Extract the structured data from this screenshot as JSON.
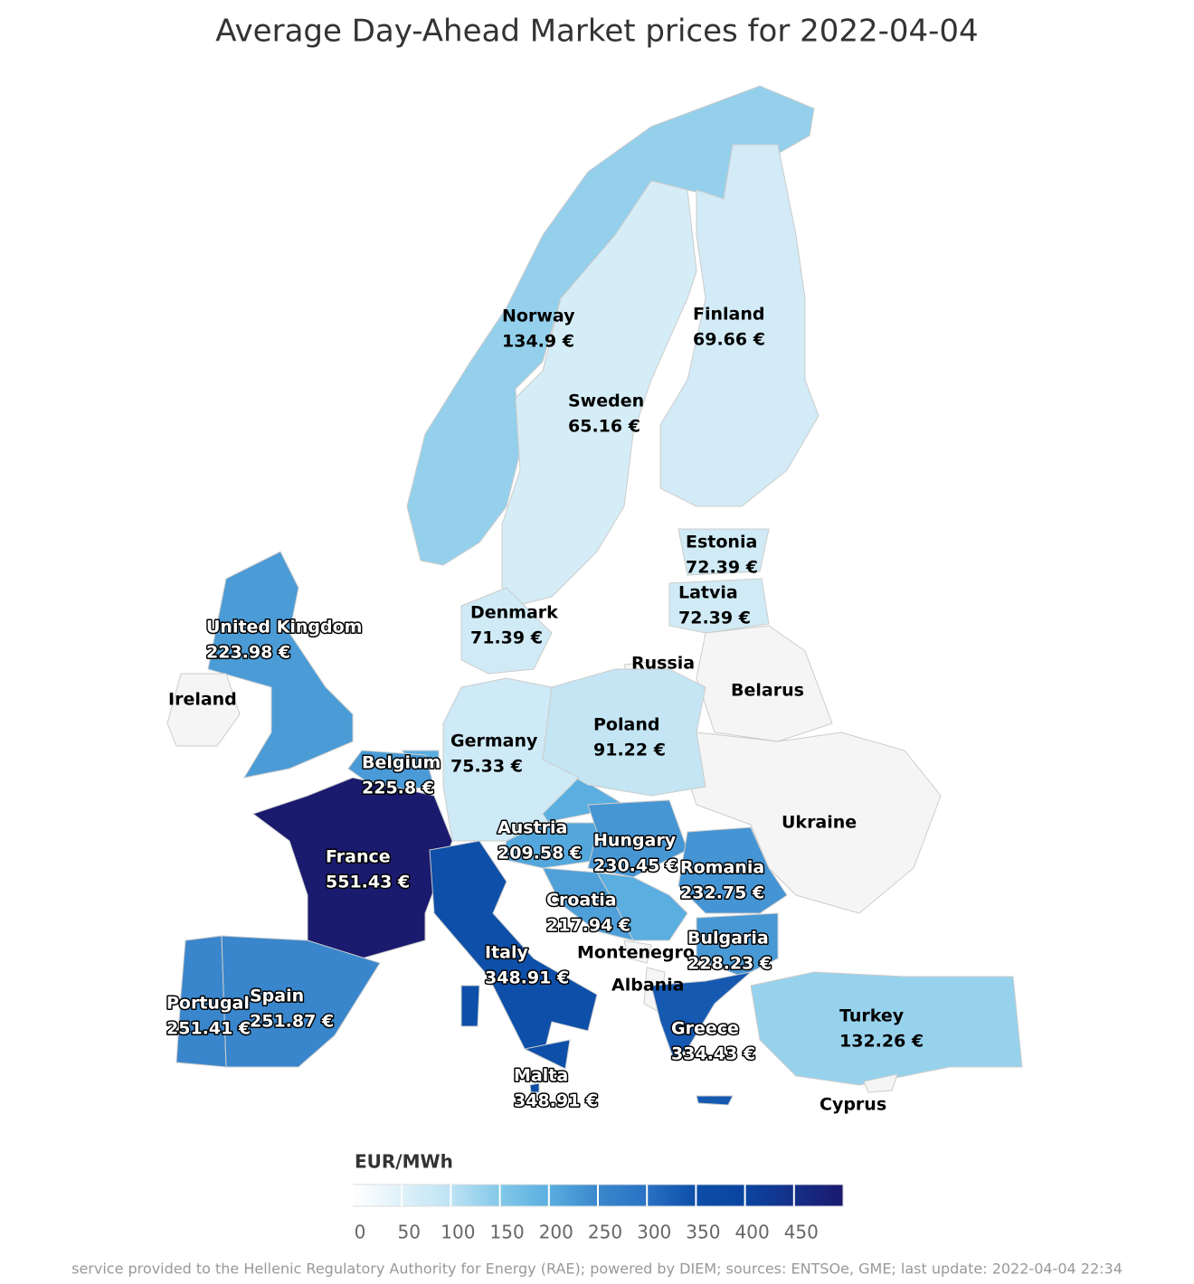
{
  "chart_data": {
    "type": "choropleth",
    "title": "Average Day-Ahead Market prices for 2022-04-04",
    "nodata_color": "#f5f5f5",
    "regions": [
      {
        "name": "Norway",
        "value": 134.9,
        "value_label": "134.9 €"
      },
      {
        "name": "Sweden",
        "value": 65.16,
        "value_label": "65.16 €"
      },
      {
        "name": "Finland",
        "value": 69.66,
        "value_label": "69.66 €"
      },
      {
        "name": "Estonia",
        "value": 72.39,
        "value_label": "72.39 €"
      },
      {
        "name": "Latvia",
        "value": 72.39,
        "value_label": "72.39 €"
      },
      {
        "name": "Russia"
      },
      {
        "name": "Belarus"
      },
      {
        "name": "Ukraine"
      },
      {
        "name": "Poland",
        "value": 91.22,
        "value_label": "91.22 €"
      },
      {
        "name": "Germany",
        "value": 75.33,
        "value_label": "75.33 €"
      },
      {
        "name": "Denmark",
        "value": 71.39,
        "value_label": "71.39 €"
      },
      {
        "name": "Belgium",
        "value": 225.8,
        "value_label": "225.8 €"
      },
      {
        "name": "France",
        "value": 551.43,
        "value_label": "551.43 €"
      },
      {
        "name": "United Kingdom",
        "value": 223.98,
        "value_label": "223.98 €"
      },
      {
        "name": "Ireland"
      },
      {
        "name": "Portugal",
        "value": 251.41,
        "value_label": "251.41 €"
      },
      {
        "name": "Spain",
        "value": 251.87,
        "value_label": "251.87 €"
      },
      {
        "name": "Italy",
        "value": 348.91,
        "value_label": "348.91 €"
      },
      {
        "name": "Malta",
        "value": 348.91,
        "value_label": "348.91 €"
      },
      {
        "name": "Austria",
        "value": 209.58,
        "value_label": "209.58 €"
      },
      {
        "name": "Hungary",
        "value": 230.45,
        "value_label": "230.45 €"
      },
      {
        "name": "Romania",
        "value": 232.75,
        "value_label": "232.75 €"
      },
      {
        "name": "Croatia",
        "value": 217.94,
        "value_label": "217.94 €"
      },
      {
        "name": "Montenegro"
      },
      {
        "name": "Albania"
      },
      {
        "name": "Bulgaria",
        "value": 228.23,
        "value_label": "228.23 €"
      },
      {
        "name": "Greece",
        "value": 334.43,
        "value_label": "334.43 €"
      },
      {
        "name": "Turkey",
        "value": 132.26,
        "value_label": "132.26 €"
      },
      {
        "name": "Cyprus"
      }
    ],
    "colorbar": {
      "title": "EUR/MWh",
      "lim": [
        0,
        500
      ],
      "ticks": [
        0,
        50,
        100,
        150,
        200,
        250,
        300,
        350,
        400,
        450
      ],
      "colors": [
        "#ffffff",
        "#dff1f9",
        "#bde3f3",
        "#82c8e8",
        "#5aaee0",
        "#3a87cc",
        "#2a72c4",
        "#0c4ea8",
        "#0a45a0",
        "#152f88",
        "#1a1a6e"
      ]
    }
  },
  "footer": "service provided to the Hellenic Regulatory Authority for Energy (RAE); powered by DIEM; sources: ENTSOe, GME; last update: 2022-04-04 22:34"
}
